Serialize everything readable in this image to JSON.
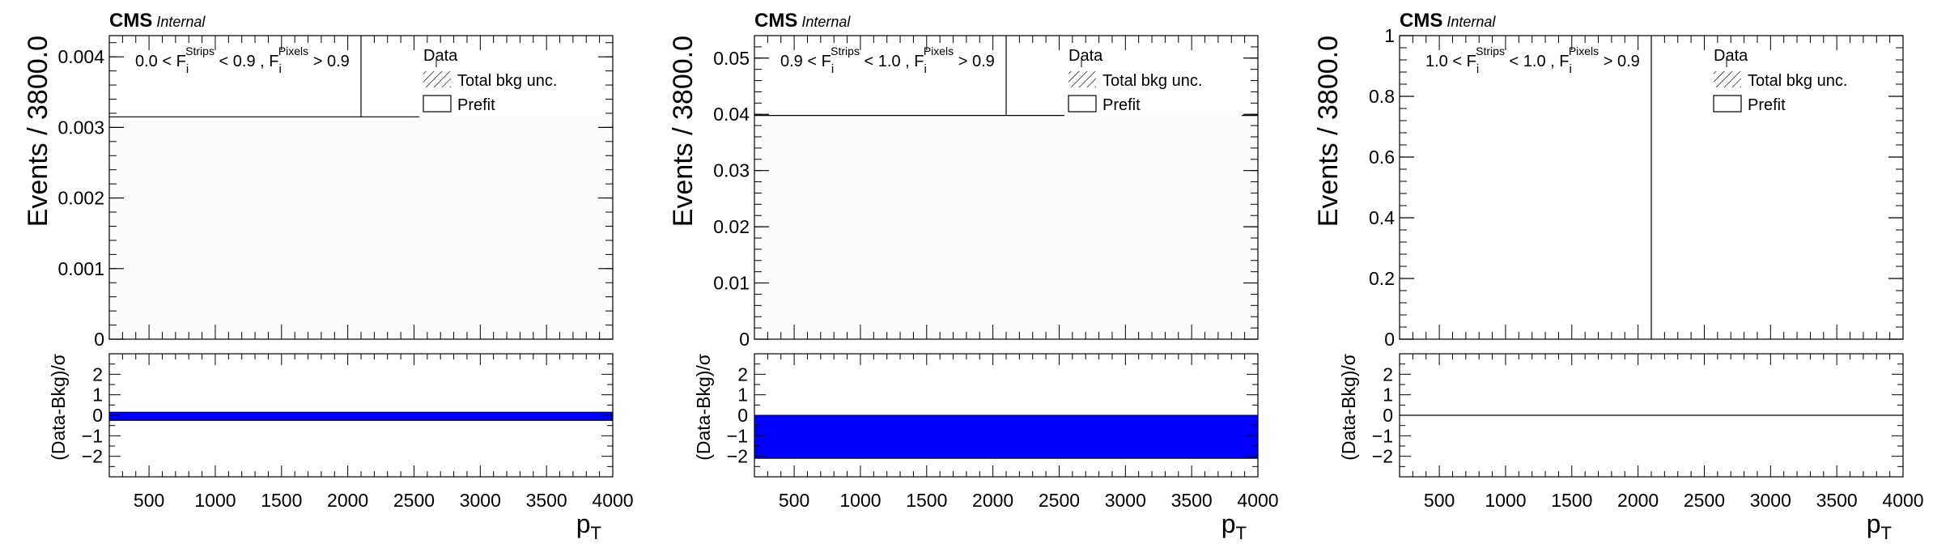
{
  "figure": {
    "background": "#ffffff",
    "pull_color": "#0000ff",
    "frame_color": "#000000",
    "main_fill": "#fcfcfc"
  },
  "chart_data": [
    {
      "type": "line",
      "cms_label": "CMS",
      "cms_sublabel": "Internal",
      "region_label": {
        "lo": "0.0",
        "hi": "0.9",
        "pix": "0.9"
      },
      "legend": {
        "data": "Data",
        "unc": "Total bkg unc.",
        "prefit": "Prefit",
        "placement": "top-right"
      },
      "ylabel": "Events / 3800.0",
      "xlabel": "p",
      "xlabel_sub": "T",
      "ratio_ylabel": "(Data-Bkg)/σ",
      "xlim": [
        200,
        4000
      ],
      "ylim": [
        0,
        0.0043
      ],
      "yticks": [
        0,
        0.001,
        0.002,
        0.003,
        0.004
      ],
      "ytick_labels": [
        "0",
        "0.001",
        "0.002",
        "0.003",
        "0.004"
      ],
      "xticks": [
        500,
        1000,
        1500,
        2000,
        2500,
        3000,
        3500,
        4000
      ],
      "xtick_labels": [
        "500",
        "1000",
        "1500",
        "2000",
        "2500",
        "3000",
        "3500",
        "4000"
      ],
      "ratio_ylim": [
        -3,
        3
      ],
      "ratio_yticks": [
        2,
        1,
        0,
        -1,
        -2
      ],
      "ratio_ytick_labels": [
        "2",
        "1",
        "0",
        "−1",
        "−2"
      ],
      "background_level": 0.00315,
      "data_line_x": 2100,
      "pull_band": [
        -0.25,
        0.15
      ]
    },
    {
      "type": "line",
      "cms_label": "CMS",
      "cms_sublabel": "Internal",
      "region_label": {
        "lo": "0.9",
        "hi": "1.0",
        "pix": "0.9"
      },
      "legend": {
        "data": "Data",
        "unc": "Total bkg unc.",
        "prefit": "Prefit",
        "placement": "top-right"
      },
      "ylabel": "Events / 3800.0",
      "xlabel": "p",
      "xlabel_sub": "T",
      "ratio_ylabel": "(Data-Bkg)/σ",
      "xlim": [
        200,
        4000
      ],
      "ylim": [
        0,
        0.054
      ],
      "yticks": [
        0,
        0.01,
        0.02,
        0.03,
        0.04,
        0.05
      ],
      "ytick_labels": [
        "0",
        "0.01",
        "0.02",
        "0.03",
        "0.04",
        "0.05"
      ],
      "xticks": [
        500,
        1000,
        1500,
        2000,
        2500,
        3000,
        3500,
        4000
      ],
      "xtick_labels": [
        "500",
        "1000",
        "1500",
        "2000",
        "2500",
        "3000",
        "3500",
        "4000"
      ],
      "ratio_ylim": [
        -3,
        3
      ],
      "ratio_yticks": [
        2,
        1,
        0,
        -1,
        -2
      ],
      "ratio_ytick_labels": [
        "2",
        "1",
        "0",
        "−1",
        "−2"
      ],
      "background_level": 0.0398,
      "data_line_x": 2100,
      "pull_band": [
        -2.1,
        0
      ]
    },
    {
      "type": "line",
      "cms_label": "CMS",
      "cms_sublabel": "Internal",
      "region_label": {
        "lo": "1.0",
        "hi": "1.0",
        "pix": "0.9"
      },
      "legend": {
        "data": "Data",
        "unc": "Total bkg unc.",
        "prefit": "Prefit",
        "placement": "top-right"
      },
      "ylabel": "Events / 3800.0",
      "xlabel": "p",
      "xlabel_sub": "T",
      "ratio_ylabel": "(Data-Bkg)/σ",
      "xlim": [
        200,
        4000
      ],
      "ylim": [
        0,
        1
      ],
      "yticks": [
        0,
        0.2,
        0.4,
        0.6,
        0.8,
        1
      ],
      "ytick_labels": [
        "0",
        "0.2",
        "0.4",
        "0.6",
        "0.8",
        "1"
      ],
      "xticks": [
        500,
        1000,
        1500,
        2000,
        2500,
        3000,
        3500,
        4000
      ],
      "xtick_labels": [
        "500",
        "1000",
        "1500",
        "2000",
        "2500",
        "3000",
        "3500",
        "4000"
      ],
      "ratio_ylim": [
        -3,
        3
      ],
      "ratio_yticks": [
        2,
        1,
        0,
        -1,
        -2
      ],
      "ratio_ytick_labels": [
        "2",
        "1",
        "0",
        "−1",
        "−2"
      ],
      "background_level": null,
      "data_line_x": 2100,
      "pull_band": null
    }
  ]
}
